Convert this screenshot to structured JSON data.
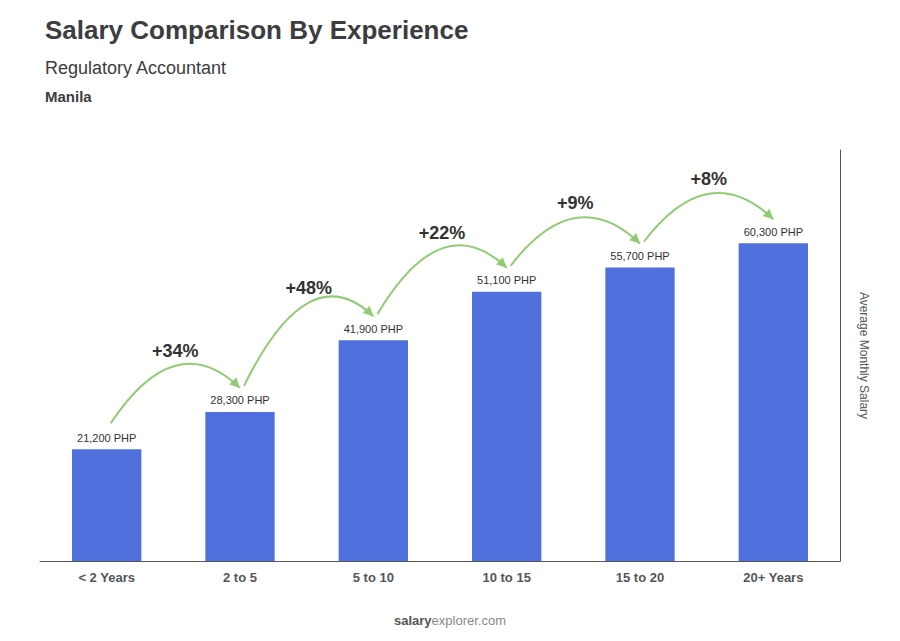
{
  "chart_data": {
    "type": "bar",
    "title": "Salary Comparison By Experience",
    "subtitle": "Regulatory Accountant",
    "city": "Manila",
    "ylabel": "Average Monthly Salary",
    "watermark": [
      "salary",
      "explorer.com"
    ],
    "categories": [
      "< 2 Years",
      "2 to 5",
      "5 to 10",
      "10 to 15",
      "15 to 20",
      "20+ Years"
    ],
    "values": [
      21200,
      28300,
      41900,
      51100,
      55700,
      60300
    ],
    "value_labels": [
      "21,200 PHP",
      "28,300 PHP",
      "41,900 PHP",
      "51,100 PHP",
      "55,700 PHP",
      "60,300 PHP"
    ],
    "data_labels": true,
    "annotations": [
      "+34%",
      "+48%",
      "+22%",
      "+9%",
      "+8%"
    ],
    "ylim": [
      0,
      78000
    ],
    "grid": false,
    "tick_labels": "x"
  }
}
